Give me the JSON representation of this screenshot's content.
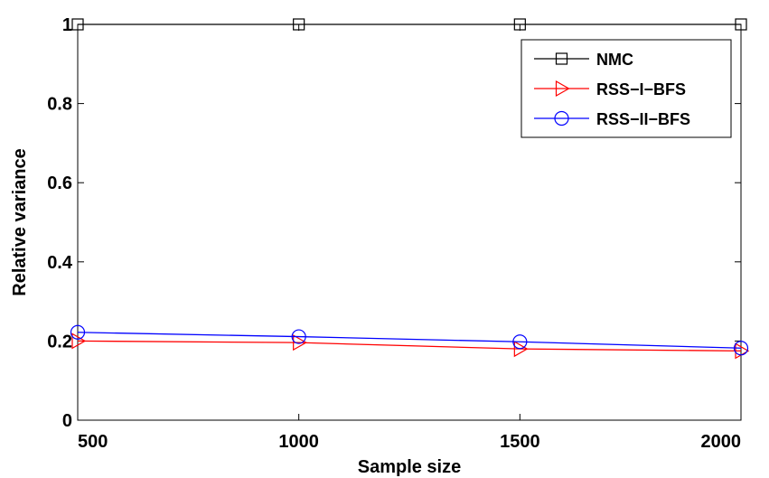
{
  "chart_data": {
    "type": "line",
    "title": "",
    "xlabel": "Sample size",
    "ylabel": "Relative variance",
    "x": [
      500,
      1000,
      1500,
      2000
    ],
    "xlim": [
      500,
      2000
    ],
    "ylim": [
      0,
      1.0
    ],
    "xticks": [
      500,
      1000,
      1500,
      2000
    ],
    "yticks": [
      0,
      0.2,
      0.4,
      0.6,
      0.8,
      1
    ],
    "xtick_labels": [
      "500",
      "1000",
      "1500",
      "2000"
    ],
    "ytick_labels": [
      "0",
      "0.2",
      "0.4",
      "0.6",
      "0.8",
      "1"
    ],
    "grid": false,
    "legend_position": "top-right",
    "series": [
      {
        "name": "NMC",
        "values": [
          1.0,
          1.0,
          1.0,
          1.0
        ],
        "color": "#000000",
        "marker": "square"
      },
      {
        "name": "RSS−I−BFS",
        "values": [
          0.2,
          0.196,
          0.18,
          0.175
        ],
        "color": "#ff0000",
        "marker": "triangle-right"
      },
      {
        "name": "RSS−II−BFS",
        "values": [
          0.222,
          0.211,
          0.198,
          0.182
        ],
        "color": "#0000ff",
        "marker": "circle"
      }
    ]
  }
}
